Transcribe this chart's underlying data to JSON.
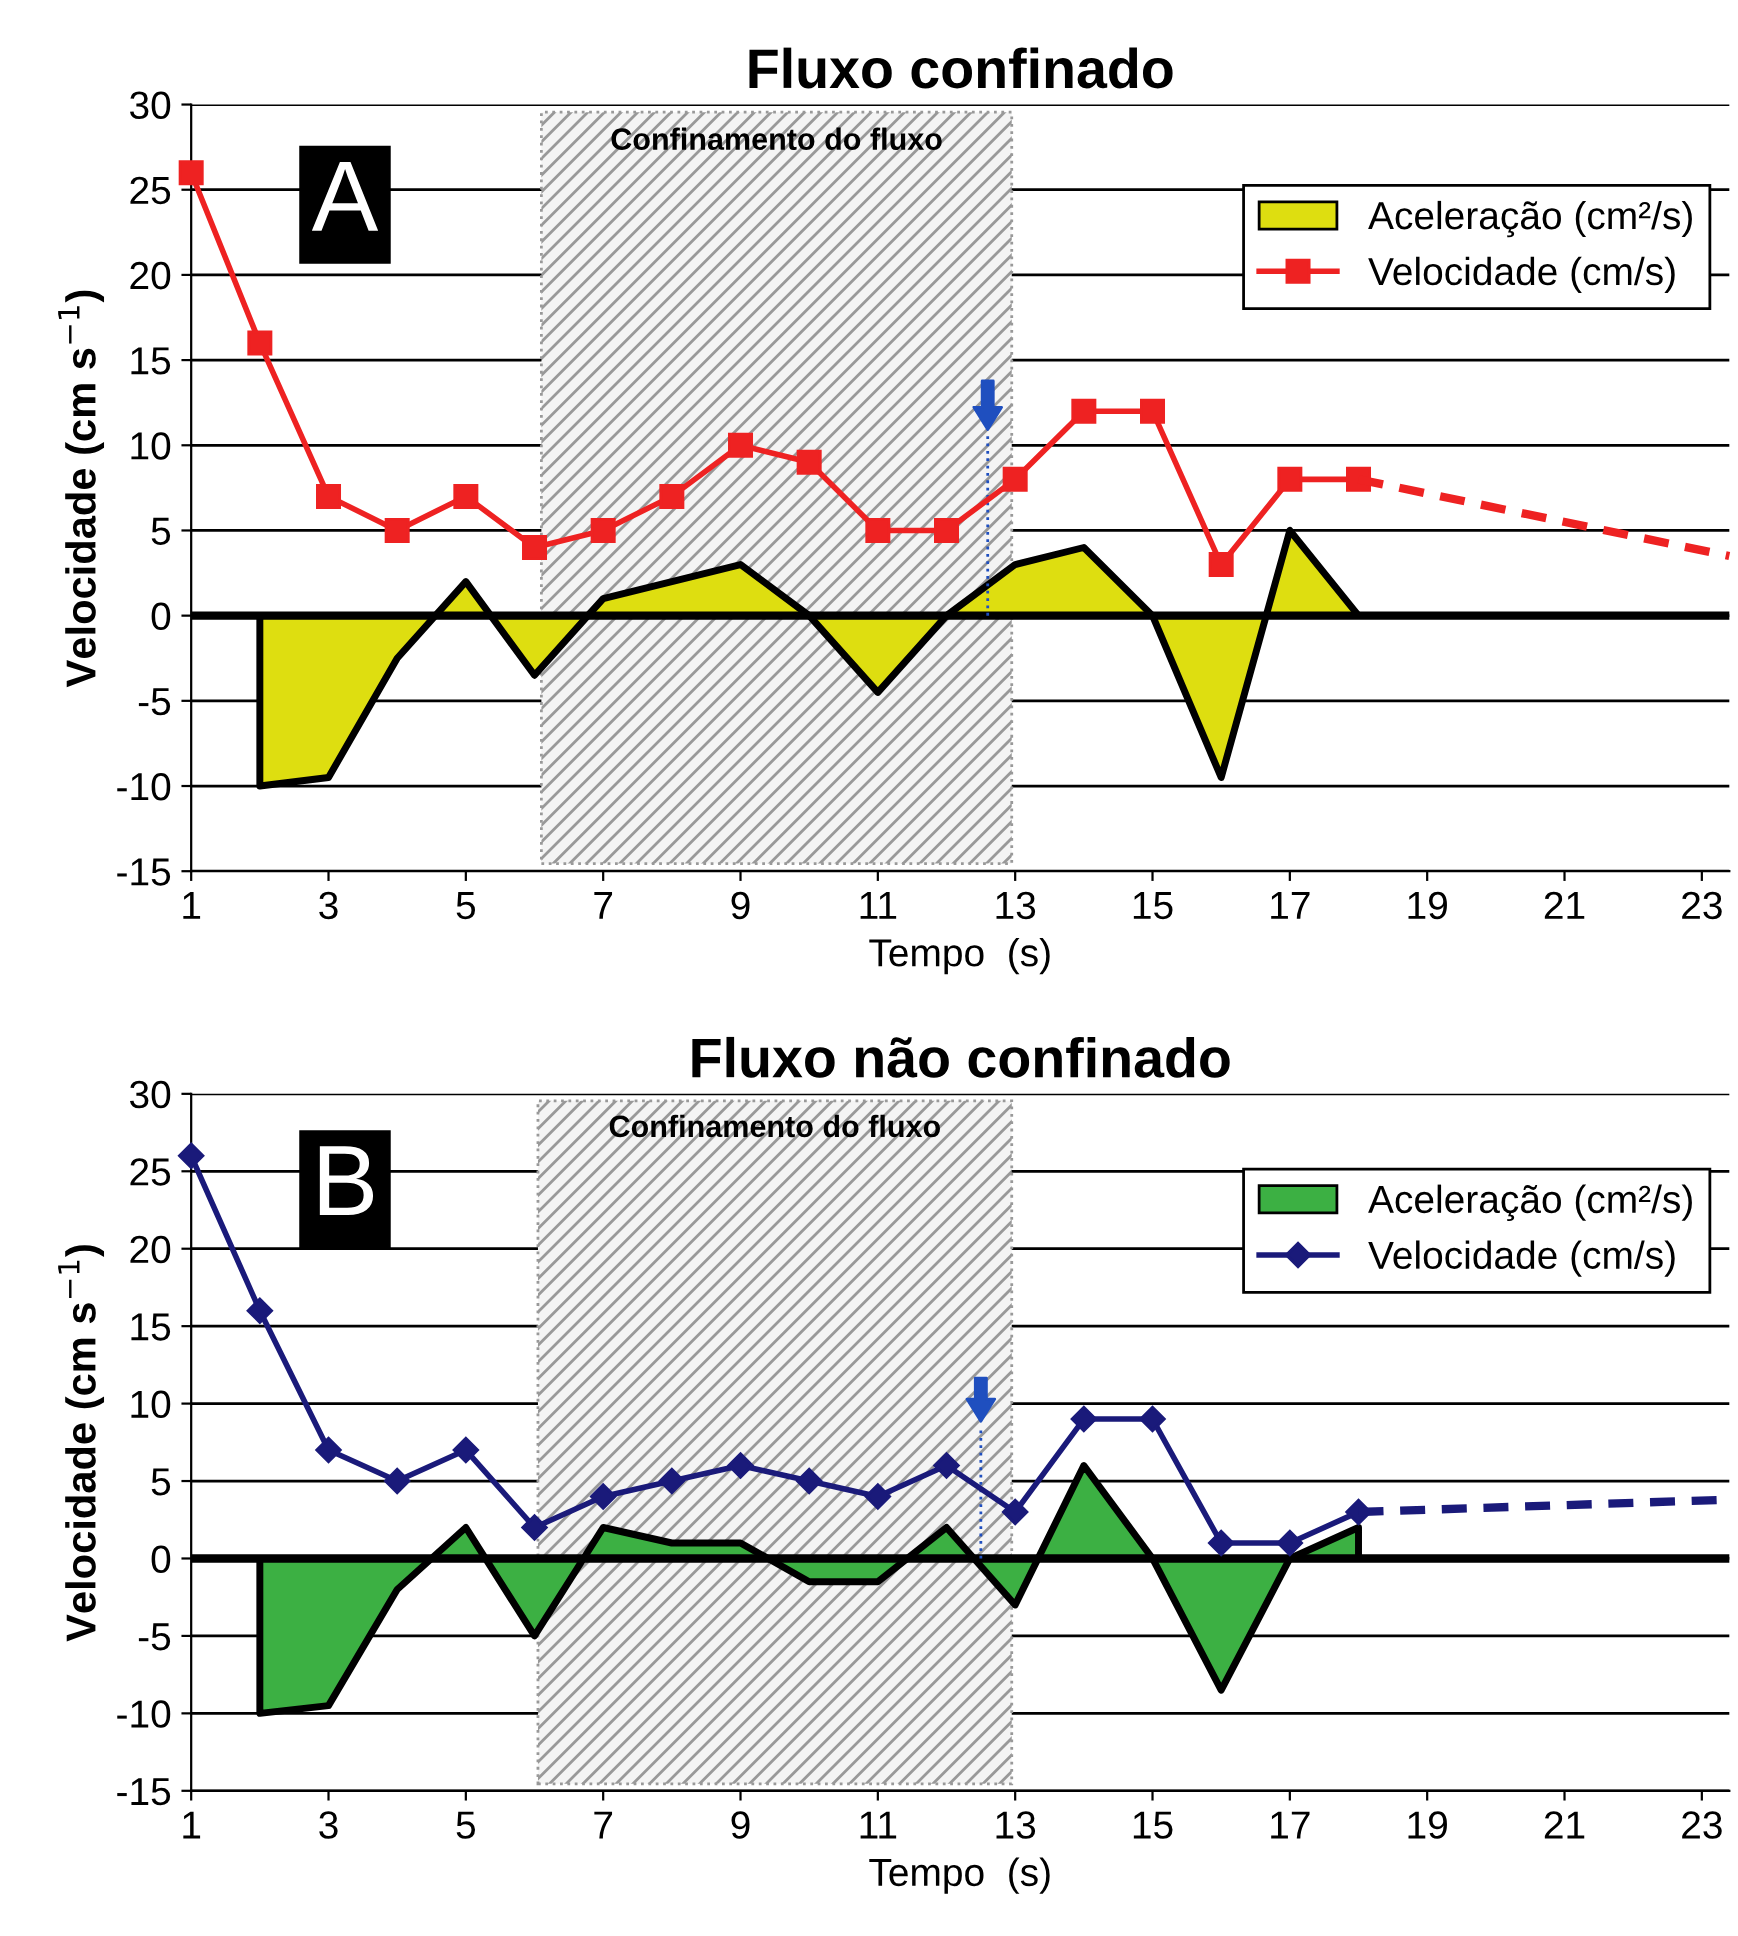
{
  "chart_data": [
    {
      "type": "line",
      "title": "Fluxo confinado",
      "xlabel": "Tempo  (s)",
      "ylabel": "Velocidade (cm s$^{−1}$)",
      "annotations": [
        "A"
      ],
      "xlim": [
        1,
        23.4
      ],
      "xticks": [
        1,
        3,
        5,
        7,
        9,
        11,
        13,
        15,
        17,
        19,
        21,
        23
      ],
      "ylim": [
        -15,
        30
      ],
      "yticks": [
        -15,
        -10,
        -5,
        0,
        5,
        10,
        15,
        20,
        25,
        30
      ],
      "grid": "y",
      "legend": "top right",
      "marker": "square",
      "bands": [
        {
          "axis": "x",
          "from": 6.1,
          "to": 12.95,
          "label": "Confinamento do fluxo",
          "color": "#999999"
        }
      ],
      "ref_lines": [
        {
          "axis": "x",
          "value": 12.6,
          "label": null,
          "color": "#1f4fbf",
          "line_style": "dotted"
        }
      ],
      "series": [
        {
          "name": "Aceleração (cm²/s)",
          "type": "area",
          "marker": "none",
          "color": "#dede10",
          "x": [
            2,
            3,
            4,
            5,
            6,
            7,
            8,
            9,
            10,
            11,
            12,
            13,
            14,
            15,
            16,
            17,
            18
          ],
          "values": [
            -10,
            -9.5,
            -2.5,
            2,
            -3.5,
            1,
            2,
            3,
            0,
            -4.5,
            0,
            3,
            4,
            0,
            -9.5,
            5,
            0
          ]
        },
        {
          "name": "Velocidade (cm/s)",
          "color": "#ee2222",
          "x": [
            1,
            2,
            3,
            4,
            5,
            6,
            7,
            8,
            9,
            10,
            11,
            12,
            13,
            14,
            15,
            16,
            17,
            18
          ],
          "values": [
            26,
            16,
            7,
            5,
            7,
            4,
            5,
            7,
            10,
            9,
            5,
            5,
            8,
            12,
            12,
            3,
            8,
            8
          ]
        },
        {
          "color": "#ee2222",
          "line_style": "dashed",
          "marker": "none",
          "x": [
            18,
            23.4
          ],
          "values": [
            8,
            3.5
          ]
        }
      ]
    },
    {
      "type": "line",
      "title": "Fluxo não confinado",
      "xlabel": "Tempo  (s)",
      "ylabel": "Velocidade (cm s$^{−1}$)",
      "annotations": [
        "B"
      ],
      "xlim": [
        1,
        23.4
      ],
      "xticks": [
        1,
        3,
        5,
        7,
        9,
        11,
        13,
        15,
        17,
        19,
        21,
        23
      ],
      "ylim": [
        -15,
        30
      ],
      "yticks": [
        -15,
        -10,
        -5,
        0,
        5,
        10,
        15,
        20,
        25,
        30
      ],
      "grid": "y",
      "legend": "top right",
      "marker": "diamond",
      "bands": [
        {
          "axis": "x",
          "from": 6.05,
          "to": 12.95,
          "label": "Confinamento do fluxo",
          "color": "#999999"
        }
      ],
      "ref_lines": [
        {
          "axis": "x",
          "value": 12.5,
          "label": null,
          "color": "#1f4fbf",
          "line_style": "dotted"
        }
      ],
      "series": [
        {
          "name": "Aceleração (cm²/s)",
          "type": "area",
          "marker": "none",
          "color": "#3cb043",
          "x": [
            2,
            3,
            4,
            5,
            6,
            7,
            8,
            9,
            10,
            11,
            12,
            13,
            14,
            15,
            16,
            17,
            18
          ],
          "values": [
            -10,
            -9.5,
            -2,
            2,
            -5,
            2,
            1,
            1,
            -1.5,
            -1.5,
            2,
            -3,
            6,
            0,
            -8.5,
            0,
            2
          ]
        },
        {
          "name": "Velocidade (cm/s)",
          "color": "#1a1a7a",
          "x": [
            1,
            2,
            3,
            4,
            5,
            6,
            7,
            8,
            9,
            10,
            11,
            12,
            13,
            14,
            15,
            16,
            17,
            18
          ],
          "values": [
            26,
            16,
            7,
            5,
            7,
            2,
            4,
            5,
            6,
            5,
            4,
            6,
            3,
            9,
            9,
            1,
            1,
            3
          ]
        },
        {
          "color": "#1a1a7a",
          "line_style": "dashed",
          "marker": "none",
          "x": [
            18,
            23.4
          ],
          "values": [
            3,
            3.8
          ]
        }
      ]
    }
  ]
}
